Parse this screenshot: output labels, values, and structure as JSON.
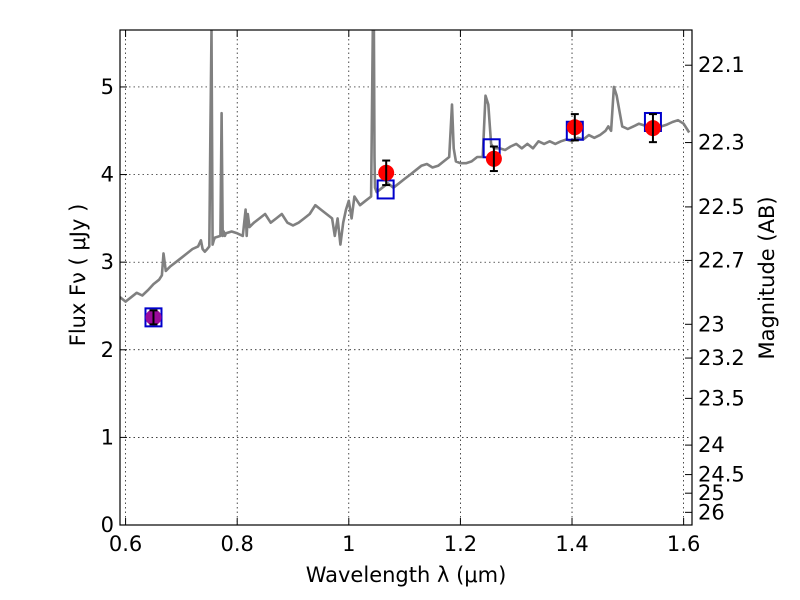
{
  "chart_data": {
    "type": "scatter",
    "xlabel": "Wavelength  λ (μm)",
    "ylabel_left": "Flux  Fν  ( μJy )",
    "ylabel_right": "Magnitude (AB)",
    "xlim": [
      0.59,
      1.615
    ],
    "ylim": [
      0,
      5.65
    ],
    "grid": true,
    "x_ticks": [
      0.6,
      0.8,
      1.0,
      1.2,
      1.4,
      1.6
    ],
    "x_tick_labels": [
      "0.6",
      "0.8",
      "1",
      "1.2",
      "1.4",
      "1.6"
    ],
    "y_ticks": [
      0,
      1,
      2,
      3,
      4,
      5
    ],
    "y_tick_labels": [
      "0",
      "1",
      "2",
      "3",
      "4",
      "5"
    ],
    "right_ticks": [
      {
        "mag": 22.1,
        "label": "22.1"
      },
      {
        "mag": 22.3,
        "label": "22.3"
      },
      {
        "mag": 22.5,
        "label": "22.5"
      },
      {
        "mag": 22.7,
        "label": "22.7"
      },
      {
        "mag": 23.0,
        "label": "23"
      },
      {
        "mag": 23.2,
        "label": "23.2"
      },
      {
        "mag": 23.5,
        "label": "23.5"
      },
      {
        "mag": 24.0,
        "label": "24"
      },
      {
        "mag": 24.5,
        "label": "24.5"
      },
      {
        "mag": 25.0,
        "label": "25"
      },
      {
        "mag": 26.0,
        "label": "26"
      }
    ],
    "colors": {
      "model": "#808080",
      "observed": "#ff0000",
      "observed_first": "#9b0a9b",
      "box": "#0000cc",
      "errorbar": "#000000"
    },
    "model_spectrum": {
      "x": [
        0.59,
        0.6,
        0.61,
        0.62,
        0.63,
        0.64,
        0.65,
        0.66,
        0.665,
        0.668,
        0.672,
        0.68,
        0.69,
        0.7,
        0.71,
        0.72,
        0.73,
        0.735,
        0.738,
        0.742,
        0.745,
        0.75,
        0.752,
        0.754,
        0.756,
        0.758,
        0.76,
        0.77,
        0.772,
        0.774,
        0.776,
        0.778,
        0.78,
        0.79,
        0.8,
        0.81,
        0.815,
        0.817,
        0.819,
        0.822,
        0.83,
        0.84,
        0.85,
        0.86,
        0.87,
        0.88,
        0.89,
        0.9,
        0.91,
        0.92,
        0.93,
        0.94,
        0.95,
        0.96,
        0.97,
        0.975,
        0.98,
        0.985,
        0.99,
        0.995,
        1.0,
        1.005,
        1.01,
        1.02,
        1.03,
        1.04,
        1.043,
        1.044,
        1.045,
        1.046,
        1.047,
        1.05,
        1.06,
        1.07,
        1.08,
        1.09,
        1.1,
        1.11,
        1.12,
        1.13,
        1.14,
        1.15,
        1.16,
        1.17,
        1.18,
        1.185,
        1.188,
        1.192,
        1.2,
        1.21,
        1.22,
        1.23,
        1.24,
        1.245,
        1.25,
        1.255,
        1.26,
        1.27,
        1.28,
        1.29,
        1.3,
        1.31,
        1.32,
        1.33,
        1.34,
        1.35,
        1.36,
        1.37,
        1.38,
        1.39,
        1.4,
        1.41,
        1.42,
        1.43,
        1.44,
        1.45,
        1.46,
        1.465,
        1.47,
        1.475,
        1.48,
        1.49,
        1.5,
        1.51,
        1.52,
        1.53,
        1.54,
        1.55,
        1.56,
        1.57,
        1.58,
        1.59,
        1.6,
        1.61
      ],
      "y": [
        2.6,
        2.55,
        2.6,
        2.65,
        2.62,
        2.68,
        2.75,
        2.8,
        2.85,
        3.1,
        2.9,
        2.95,
        3.0,
        3.05,
        3.1,
        3.15,
        3.18,
        3.25,
        3.15,
        3.12,
        3.14,
        3.18,
        4.5,
        5.65,
        3.2,
        3.25,
        3.28,
        3.3,
        4.7,
        3.3,
        3.35,
        3.3,
        3.33,
        3.35,
        3.33,
        3.3,
        3.6,
        3.3,
        3.55,
        3.4,
        3.45,
        3.5,
        3.55,
        3.45,
        3.5,
        3.55,
        3.45,
        3.42,
        3.45,
        3.5,
        3.55,
        3.65,
        3.6,
        3.55,
        3.5,
        3.3,
        3.5,
        3.2,
        3.45,
        3.6,
        3.7,
        3.5,
        3.75,
        3.65,
        3.7,
        3.75,
        5.65,
        5.65,
        5.65,
        4.2,
        3.85,
        3.8,
        3.85,
        3.9,
        3.85,
        3.9,
        3.95,
        4.0,
        4.05,
        4.1,
        4.12,
        4.08,
        4.1,
        4.15,
        4.2,
        4.8,
        4.3,
        4.15,
        4.13,
        4.13,
        4.15,
        4.2,
        4.2,
        4.9,
        4.8,
        4.35,
        4.3,
        4.3,
        4.28,
        4.32,
        4.35,
        4.3,
        4.35,
        4.3,
        4.38,
        4.35,
        4.38,
        4.35,
        4.38,
        4.4,
        4.38,
        4.42,
        4.4,
        4.45,
        4.42,
        4.45,
        4.5,
        4.55,
        4.5,
        5.0,
        4.9,
        4.55,
        4.52,
        4.55,
        4.58,
        4.56,
        4.55,
        4.58,
        4.55,
        4.57,
        4.6,
        4.62,
        4.58,
        4.48
      ]
    },
    "observed": [
      {
        "x": 0.65,
        "y": 2.37,
        "err": 0.08
      },
      {
        "x": 1.067,
        "y": 4.02,
        "err": 0.14
      },
      {
        "x": 1.26,
        "y": 4.18,
        "err": 0.14
      },
      {
        "x": 1.405,
        "y": 4.54,
        "err": 0.15
      },
      {
        "x": 1.545,
        "y": 4.53,
        "err": 0.16
      }
    ],
    "model_photometry": [
      {
        "x": 0.65,
        "y": 2.37
      },
      {
        "x": 1.066,
        "y": 3.83
      },
      {
        "x": 1.256,
        "y": 4.3
      },
      {
        "x": 1.405,
        "y": 4.5
      },
      {
        "x": 1.545,
        "y": 4.6
      }
    ]
  }
}
